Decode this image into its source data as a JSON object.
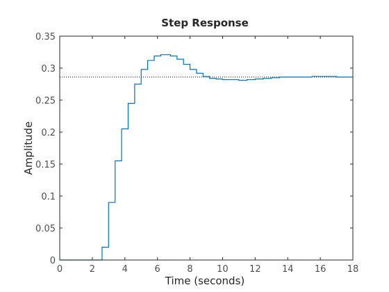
{
  "chart_data": {
    "type": "line",
    "title": "Step Response",
    "xlabel": "Time (seconds)",
    "ylabel": "Amplitude",
    "xlim": [
      0,
      18
    ],
    "ylim": [
      0,
      0.35
    ],
    "xticks": [
      0,
      2,
      4,
      6,
      8,
      10,
      12,
      14,
      16,
      18
    ],
    "yticks": [
      0,
      0.05,
      0.1,
      0.15,
      0.2,
      0.25,
      0.3,
      0.35
    ],
    "xtick_labels": [
      "0",
      "2",
      "4",
      "6",
      "8",
      "10",
      "12",
      "14",
      "16",
      "18"
    ],
    "ytick_labels": [
      "0",
      "0.05",
      "0.1",
      "0.15",
      "0.2",
      "0.25",
      "0.3",
      "0.35"
    ],
    "grid": false,
    "steady_state": 0.286,
    "series": [
      {
        "style": "stairs",
        "color": "#0072bd",
        "x": [
          0,
          2.6,
          3.0,
          3.4,
          3.8,
          4.2,
          4.6,
          5.0,
          5.4,
          5.8,
          6.2,
          6.5,
          6.8,
          7.2,
          7.6,
          8.0,
          8.4,
          8.8,
          9.2,
          9.6,
          10.0,
          10.5,
          11.0,
          11.5,
          12.0,
          12.5,
          13.0,
          13.5,
          14.0,
          14.5,
          15.0,
          15.5,
          16.0,
          16.5,
          17.0,
          17.5,
          18.0
        ],
        "y": [
          0,
          0.02,
          0.09,
          0.155,
          0.205,
          0.245,
          0.275,
          0.298,
          0.312,
          0.319,
          0.321,
          0.321,
          0.319,
          0.314,
          0.306,
          0.298,
          0.292,
          0.287,
          0.284,
          0.283,
          0.282,
          0.282,
          0.281,
          0.282,
          0.283,
          0.284,
          0.285,
          0.286,
          0.286,
          0.286,
          0.286,
          0.287,
          0.287,
          0.287,
          0.286,
          0.286,
          0.286
        ]
      }
    ]
  }
}
